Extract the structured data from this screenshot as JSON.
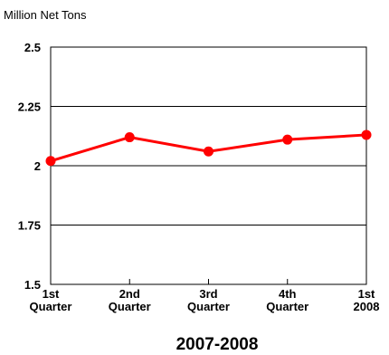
{
  "chart_data": {
    "type": "line",
    "ylabel": "Million Net Tons",
    "xlabel": "2007-2008",
    "categories": [
      [
        "1st",
        "Quarter"
      ],
      [
        "2nd",
        "Quarter"
      ],
      [
        "3rd",
        "Quarter"
      ],
      [
        "4th",
        "Quarter"
      ],
      [
        "1st",
        "2008"
      ]
    ],
    "values": [
      2.02,
      2.12,
      2.06,
      2.11,
      2.13
    ],
    "ylim": [
      1.5,
      2.5
    ],
    "yticks": [
      "1.5",
      "1.75",
      "2",
      "2.25",
      "2.5"
    ],
    "grid": true,
    "series_color": "#ff0000"
  }
}
